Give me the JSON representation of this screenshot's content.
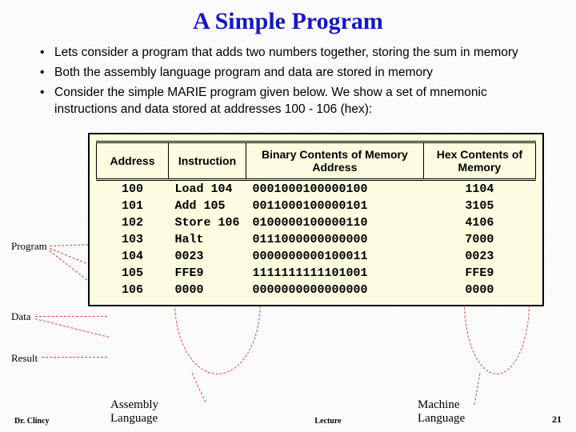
{
  "title": "A Simple Program",
  "bullets": [
    "Lets consider a program that adds two numbers together, storing the sum in memory",
    "Both the assembly language program and data are stored in memory",
    "Consider the simple MARIE program given below.  We show a set of mnemonic instructions and data stored at addresses 100 - 106 (hex):"
  ],
  "table": {
    "headers": [
      "Address",
      "Instruction",
      "Binary Contents of Memory Address",
      "Hex Contents of Memory"
    ],
    "rows": [
      [
        "100",
        "Load 104",
        "0001000100000100",
        "1104"
      ],
      [
        "101",
        "Add 105",
        "0011000100000101",
        "3105"
      ],
      [
        "102",
        "Store 106",
        "0100000100000110",
        "4106"
      ],
      [
        "103",
        "Halt",
        "0111000000000000",
        "7000"
      ],
      [
        "104",
        "0023",
        "0000000000100011",
        "0023"
      ],
      [
        "105",
        "FFE9",
        "1111111111101001",
        "FFE9"
      ],
      [
        "106",
        "0000",
        "0000000000000000",
        "0000"
      ]
    ],
    "background_color": "#fcfce0",
    "border_color": "#000000"
  },
  "annotations": {
    "program": "Program",
    "data": "Data",
    "result": "Result"
  },
  "footer": {
    "author": "Dr. Clincy",
    "assembly": "Assembly Language",
    "lecture": "Lecture",
    "machine": "Machine Language",
    "page": "21"
  },
  "colors": {
    "title_color": "#1818b8",
    "annotation_dash": "#d84040"
  }
}
